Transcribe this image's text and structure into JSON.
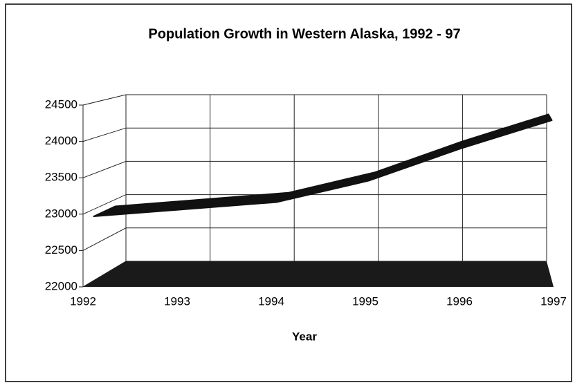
{
  "chart_data": {
    "type": "line3d",
    "title": "Population Growth in Western Alaska, 1992 - 97",
    "x_label": "Year",
    "categories": [
      "1992",
      "1993",
      "1994",
      "1995",
      "1996",
      "1997"
    ],
    "values": [
      22900,
      23000,
      23100,
      23400,
      23850,
      24250
    ],
    "color": "#111111",
    "floor_color": "#1a1a1a",
    "ylim": [
      22000,
      24500
    ],
    "yticks": [
      22000,
      22500,
      23000,
      23500,
      24000,
      24500
    ],
    "grid": true
  }
}
